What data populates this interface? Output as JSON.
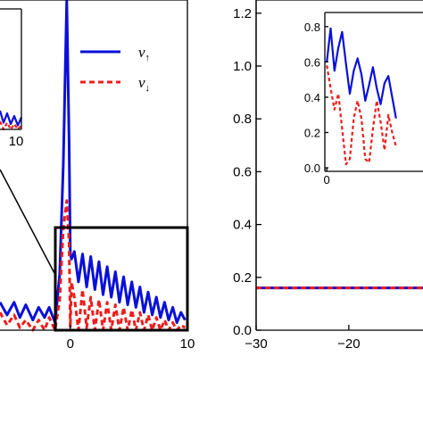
{
  "colors": {
    "up": "#0a10d8",
    "down": "#ee1c1c",
    "frame": "#000000"
  },
  "legend": {
    "up_symbol": "v",
    "up_arrow": "↑",
    "down_symbol": "v",
    "down_arrow": "↓"
  },
  "chart_data": [
    {
      "panel": "left-main",
      "type": "line",
      "xlim": [
        -6,
        10
      ],
      "ylim": [
        0,
        1.3
      ],
      "x_ticks": [
        0,
        10
      ],
      "x_tick_labels": [
        "0",
        "10"
      ],
      "legend_placement": "top-right",
      "series": [
        {
          "name": "v↑",
          "style": "solid",
          "x": [
            -6.0,
            -5.4,
            -4.8,
            -4.3,
            -3.8,
            -3.2,
            -2.7,
            -2.2,
            -1.8,
            -1.3,
            -0.9,
            -0.6,
            -0.3,
            -0.1,
            0.0,
            0.1,
            0.35,
            0.7,
            1.05,
            1.4,
            1.75,
            2.1,
            2.45,
            2.8,
            3.15,
            3.5,
            3.85,
            4.2,
            4.55,
            4.9,
            5.25,
            5.6,
            5.95,
            6.3,
            6.65,
            7.0,
            7.35,
            7.7,
            8.05,
            8.4,
            8.75,
            9.1,
            9.45,
            9.8
          ],
          "y": [
            0.11,
            0.06,
            0.11,
            0.05,
            0.1,
            0.04,
            0.09,
            0.05,
            0.09,
            0.03,
            0.22,
            0.65,
            1.3,
            0.75,
            0.3,
            0.28,
            0.31,
            0.19,
            0.3,
            0.17,
            0.29,
            0.16,
            0.27,
            0.14,
            0.25,
            0.13,
            0.23,
            0.11,
            0.21,
            0.1,
            0.19,
            0.09,
            0.17,
            0.07,
            0.15,
            0.06,
            0.13,
            0.05,
            0.11,
            0.04,
            0.09,
            0.03,
            0.07,
            0.04
          ]
        },
        {
          "name": "v↓",
          "style": "dashed",
          "x": [
            -6.0,
            -5.4,
            -4.8,
            -4.3,
            -3.8,
            -3.2,
            -2.7,
            -2.2,
            -1.8,
            -1.3,
            -0.9,
            -0.6,
            -0.3,
            -0.1,
            0.0,
            0.1,
            0.35,
            0.7,
            1.05,
            1.4,
            1.75,
            2.1,
            2.45,
            2.8,
            3.15,
            3.5,
            3.85,
            4.2,
            4.55,
            4.9,
            5.25,
            5.6,
            5.95,
            6.3,
            6.65,
            7.0,
            7.35,
            7.7,
            8.05,
            8.4,
            8.75,
            9.1,
            9.45,
            9.8
          ],
          "y": [
            0.07,
            0.02,
            0.06,
            0.01,
            0.04,
            0.0,
            0.04,
            0.0,
            0.05,
            0.0,
            0.12,
            0.4,
            0.51,
            0.35,
            0.01,
            0.19,
            0.13,
            0.0,
            0.16,
            0.01,
            0.13,
            0.0,
            0.12,
            0.0,
            0.11,
            0.0,
            0.1,
            0.0,
            0.09,
            0.0,
            0.08,
            0.0,
            0.07,
            0.0,
            0.06,
            0.0,
            0.05,
            0.0,
            0.04,
            0.0,
            0.03,
            0.0,
            0.02,
            0.01
          ]
        }
      ]
    },
    {
      "panel": "left-inset",
      "type": "line",
      "x_tick_labels": [
        "10"
      ],
      "series": [
        {
          "name": "v↑",
          "style": "solid",
          "x": [
            0,
            1,
            2,
            3,
            4,
            5,
            6
          ],
          "y": [
            0.14,
            0.05,
            0.12,
            0.04,
            0.1,
            0.03,
            0.09
          ]
        },
        {
          "name": "v↓",
          "style": "dashed",
          "x": [
            0,
            1,
            2,
            3,
            4,
            5,
            6
          ],
          "y": [
            0.06,
            0.0,
            0.05,
            0.0,
            0.04,
            0.0,
            0.03
          ]
        }
      ]
    },
    {
      "panel": "right-main",
      "type": "line",
      "xlim": [
        -30,
        -12
      ],
      "ylim": [
        0,
        1.25
      ],
      "x_ticks": [
        -30,
        -20
      ],
      "x_tick_labels": [
        "−30",
        "−20"
      ],
      "y_ticks": [
        0,
        0.2,
        0.4,
        0.6,
        0.8,
        1.0,
        1.2
      ],
      "y_tick_labels": [
        "0.0",
        "0.2",
        "0.4",
        "0.6",
        "0.8",
        "1.0",
        "1.2"
      ],
      "series": [
        {
          "name": "v↑",
          "style": "solid",
          "x": [
            -30,
            -12
          ],
          "y": [
            0.16,
            0.16
          ]
        },
        {
          "name": "v↓",
          "style": "dashed",
          "x": [
            -30,
            -12
          ],
          "y": [
            0.16,
            0.16
          ]
        }
      ]
    },
    {
      "panel": "right-inset",
      "type": "line",
      "xlim": [
        -0.2,
        10
      ],
      "ylim": [
        -0.02,
        0.88
      ],
      "x_ticks": [
        0
      ],
      "x_tick_labels": [
        "0"
      ],
      "y_ticks": [
        0,
        0.2,
        0.4,
        0.6,
        0.8
      ],
      "y_tick_labels": [
        "0.0",
        "0.2",
        "0.4",
        "0.6",
        "0.8"
      ],
      "series": [
        {
          "name": "v↑",
          "style": "solid",
          "x": [
            0.0,
            0.4,
            0.8,
            1.2,
            1.6,
            2.0,
            2.4,
            2.8,
            3.2,
            3.6,
            4.0,
            4.4,
            4.8,
            5.2,
            5.6,
            6.0,
            6.4,
            6.8,
            7.2
          ],
          "y": [
            0.6,
            0.79,
            0.55,
            0.68,
            0.77,
            0.59,
            0.42,
            0.55,
            0.62,
            0.53,
            0.38,
            0.47,
            0.57,
            0.45,
            0.36,
            0.48,
            0.52,
            0.4,
            0.28
          ]
        },
        {
          "name": "v↓",
          "style": "dashed",
          "x": [
            0.0,
            0.4,
            0.8,
            1.2,
            1.6,
            2.0,
            2.4,
            2.8,
            3.2,
            3.6,
            4.0,
            4.4,
            4.8,
            5.2,
            5.6,
            6.0,
            6.4,
            6.8,
            7.2
          ],
          "y": [
            0.58,
            0.45,
            0.33,
            0.42,
            0.22,
            0.02,
            0.05,
            0.28,
            0.38,
            0.28,
            0.05,
            0.03,
            0.22,
            0.38,
            0.26,
            0.1,
            0.3,
            0.2,
            0.12
          ]
        }
      ]
    }
  ]
}
